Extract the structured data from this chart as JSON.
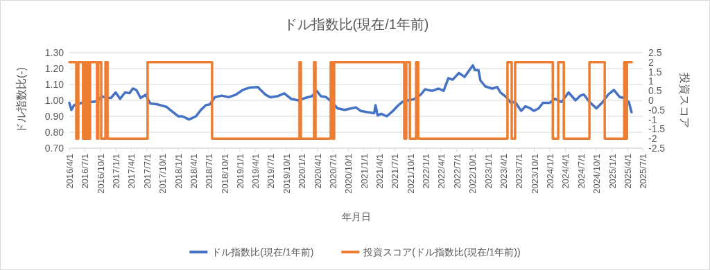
{
  "chart_data": {
    "type": "line",
    "title": "ドル指数比(現在/1年前)",
    "xlabel": "年月日",
    "ylabel": "ドル指数比(-)",
    "y2label": "投資スコア",
    "grid": "y",
    "legend": "bottom",
    "xlim": [
      "2016-04-01",
      "2025-07-01"
    ],
    "xticks": [
      {
        "value": "2016-04-01",
        "label": "2016/4/1"
      },
      {
        "value": "2016-07-01",
        "label": "2016/7/1"
      },
      {
        "value": "2016-10-01",
        "label": "2016/10/1"
      },
      {
        "value": "2017-01-01",
        "label": "2017/1/1"
      },
      {
        "value": "2017-04-01",
        "label": "2017/4/1"
      },
      {
        "value": "2017-07-01",
        "label": "2017/7/1"
      },
      {
        "value": "2017-10-01",
        "label": "2017/10/1"
      },
      {
        "value": "2018-01-01",
        "label": "2018/1/1"
      },
      {
        "value": "2018-04-01",
        "label": "2018/4/1"
      },
      {
        "value": "2018-07-01",
        "label": "2018/7/1"
      },
      {
        "value": "2018-10-01",
        "label": "2018/10/1"
      },
      {
        "value": "2019-01-01",
        "label": "2019/1/1"
      },
      {
        "value": "2019-04-01",
        "label": "2019/4/1"
      },
      {
        "value": "2019-07-01",
        "label": "2019/7/1"
      },
      {
        "value": "2019-10-01",
        "label": "2019/10/1"
      },
      {
        "value": "2020-01-01",
        "label": "2020/1/1"
      },
      {
        "value": "2020-04-01",
        "label": "2020/4/1"
      },
      {
        "value": "2020-07-01",
        "label": "2020/7/1"
      },
      {
        "value": "2020-10-01",
        "label": "2020/10/1"
      },
      {
        "value": "2021-01-01",
        "label": "2021/1/1"
      },
      {
        "value": "2021-04-01",
        "label": "2021/4/1"
      },
      {
        "value": "2021-07-01",
        "label": "2021/7/1"
      },
      {
        "value": "2021-10-01",
        "label": "2021/10/1"
      },
      {
        "value": "2022-01-01",
        "label": "2022/1/1"
      },
      {
        "value": "2022-04-01",
        "label": "2022/4/1"
      },
      {
        "value": "2022-07-01",
        "label": "2022/7/1"
      },
      {
        "value": "2022-10-01",
        "label": "2022/10/1"
      },
      {
        "value": "2023-01-01",
        "label": "2023/1/1"
      },
      {
        "value": "2023-04-01",
        "label": "2023/4/1"
      },
      {
        "value": "2023-07-01",
        "label": "2023/7/1"
      },
      {
        "value": "2023-10-01",
        "label": "2023/10/1"
      },
      {
        "value": "2024-01-01",
        "label": "2024/1/1"
      },
      {
        "value": "2024-04-01",
        "label": "2024/4/1"
      },
      {
        "value": "2024-07-01",
        "label": "2024/7/1"
      },
      {
        "value": "2024-10-01",
        "label": "2024/10/1"
      },
      {
        "value": "2025-01-01",
        "label": "2025/1/1"
      },
      {
        "value": "2025-04-01",
        "label": "2025/4/1"
      },
      {
        "value": "2025-07-01",
        "label": "2025/7/1"
      }
    ],
    "ylim": [
      0.7,
      1.3
    ],
    "yticks": [
      {
        "value": 0.7,
        "label": "0.70"
      },
      {
        "value": 0.8,
        "label": "0.80"
      },
      {
        "value": 0.9,
        "label": "0.90"
      },
      {
        "value": 1.0,
        "label": "1.00"
      },
      {
        "value": 1.1,
        "label": "1.10"
      },
      {
        "value": 1.2,
        "label": "1.20"
      },
      {
        "value": 1.3,
        "label": "1.30"
      }
    ],
    "y2lim": [
      -2.5,
      2.5
    ],
    "y2ticks": [
      -2.5,
      -2,
      -1.5,
      -1,
      -0.5,
      0,
      0.5,
      1,
      1.5,
      2,
      2.5
    ],
    "series": [
      {
        "name": "ドル指数比(現在/1年前)",
        "color": "#4472c4",
        "axis": "y",
        "x": [
          "2016-04-01",
          "2016-04-13",
          "2016-04-29",
          "2016-05-23",
          "2016-06-21",
          "2016-07-19",
          "2016-08-14",
          "2016-09-11",
          "2016-10-10",
          "2016-11-04",
          "2016-12-02",
          "2016-12-30",
          "2017-01-25",
          "2017-02-23",
          "2017-03-21",
          "2017-04-11",
          "2017-05-01",
          "2017-05-26",
          "2017-06-24",
          "2017-07-22",
          "2017-09-02",
          "2017-09-26",
          "2017-10-24",
          "2017-11-22",
          "2018-01-03",
          "2018-01-27",
          "2018-03-07",
          "2018-04-17",
          "2018-05-16",
          "2018-06-14",
          "2018-07-08",
          "2018-08-06",
          "2018-09-16",
          "2018-10-27",
          "2018-12-07",
          "2019-01-18",
          "2019-02-27",
          "2019-04-16",
          "2019-05-30",
          "2019-06-28",
          "2019-08-09",
          "2019-09-19",
          "2019-10-29",
          "2019-12-10",
          "2020-01-20",
          "2020-02-29",
          "2020-03-28",
          "2020-04-22",
          "2020-05-20",
          "2020-06-19",
          "2020-07-29",
          "2020-09-09",
          "2020-10-19",
          "2020-11-14",
          "2020-12-12",
          "2021-01-22",
          "2021-03-02",
          "2021-03-10",
          "2021-03-22",
          "2021-04-12",
          "2021-05-15",
          "2021-06-21",
          "2021-07-16",
          "2021-08-14",
          "2021-09-16",
          "2021-10-22",
          "2021-12-02",
          "2021-12-27",
          "2022-02-06",
          "2022-03-17",
          "2022-04-15",
          "2022-05-13",
          "2022-06-07",
          "2022-07-14",
          "2022-08-16",
          "2022-09-14",
          "2022-10-04",
          "2022-10-16",
          "2022-11-06",
          "2022-11-18",
          "2022-12-16",
          "2023-01-27",
          "2023-02-25",
          "2023-03-15",
          "2023-04-17",
          "2023-05-16",
          "2023-06-10",
          "2023-07-16",
          "2023-08-10",
          "2023-09-08",
          "2023-09-28",
          "2023-10-27",
          "2023-11-21",
          "2024-01-01",
          "2024-01-30",
          "2024-03-10",
          "2024-04-20",
          "2024-05-31",
          "2024-06-29",
          "2024-07-19",
          "2024-08-21",
          "2024-10-01",
          "2024-11-03",
          "2024-12-10",
          "2025-01-12",
          "2025-02-14",
          "2025-03-12",
          "2025-04-10",
          "2025-04-26"
        ],
        "values": [
          0.985,
          0.94,
          0.97,
          0.98,
          0.985,
          0.99,
          0.99,
          0.995,
          1.026,
          1.015,
          1.015,
          1.05,
          1.01,
          1.05,
          1.045,
          1.075,
          1.065,
          1.015,
          1.035,
          0.98,
          0.975,
          0.968,
          0.96,
          0.935,
          0.9,
          0.9,
          0.88,
          0.9,
          0.94,
          0.97,
          0.975,
          1.02,
          1.03,
          1.02,
          1.035,
          1.066,
          1.08,
          1.084,
          1.037,
          1.02,
          1.026,
          1.044,
          1.01,
          1.0,
          1.015,
          1.026,
          1.06,
          1.026,
          1.022,
          0.996,
          0.95,
          0.94,
          0.95,
          0.956,
          0.934,
          0.926,
          0.92,
          0.97,
          0.905,
          0.916,
          0.9,
          0.934,
          0.963,
          0.99,
          1.0,
          1.007,
          1.037,
          1.07,
          1.06,
          1.074,
          1.06,
          1.14,
          1.13,
          1.172,
          1.147,
          1.19,
          1.22,
          1.19,
          1.19,
          1.125,
          1.088,
          1.074,
          1.084,
          1.05,
          1.022,
          0.985,
          0.99,
          0.934,
          0.963,
          0.95,
          0.934,
          0.95,
          0.985,
          0.985,
          1.01,
          0.99,
          1.05,
          1.0,
          1.03,
          1.037,
          0.99,
          0.95,
          0.985,
          1.037,
          1.066,
          1.022,
          1.015,
          0.99,
          0.926
        ]
      },
      {
        "name": "投資スコア(ドル指数比(現在/1年前))",
        "color": "#ed7d31",
        "type": "step",
        "axis": "y2",
        "x": [
          "2016-04-01",
          "2016-05-12",
          "2016-05-24",
          "2016-06-21",
          "2016-06-30",
          "2016-07-08",
          "2016-07-16",
          "2016-07-24",
          "2016-08-01",
          "2016-09-11",
          "2016-09-19",
          "2016-10-06",
          "2016-10-31",
          "2016-11-12",
          "2017-07-06",
          "2018-07-21",
          "2019-12-18",
          "2019-12-26",
          "2020-03-13",
          "2020-03-21",
          "2020-06-19",
          "2020-07-01",
          "2020-07-09",
          "2021-08-26",
          "2021-09-07",
          "2021-09-28",
          "2021-11-04",
          "2021-11-16",
          "2023-04-26",
          "2023-05-21",
          "2023-06-10",
          "2024-01-18",
          "2024-02-19",
          "2024-03-23",
          "2024-08-21",
          "2024-11-19",
          "2025-03-14",
          "2025-03-18",
          "2025-03-22",
          "2025-03-26",
          "2025-03-30",
          "2025-04-27"
        ],
        "values": [
          2,
          -2,
          2,
          -2,
          2,
          -2,
          2,
          -2,
          2,
          -2,
          2,
          -2,
          2,
          -2,
          2,
          -2,
          2,
          -2,
          2,
          -2,
          2,
          -2,
          2,
          -2,
          2,
          -2,
          2,
          -2,
          2,
          -2,
          2,
          -2,
          2,
          -2,
          2,
          -2,
          2,
          -2,
          2,
          -2,
          2,
          2
        ]
      }
    ]
  }
}
